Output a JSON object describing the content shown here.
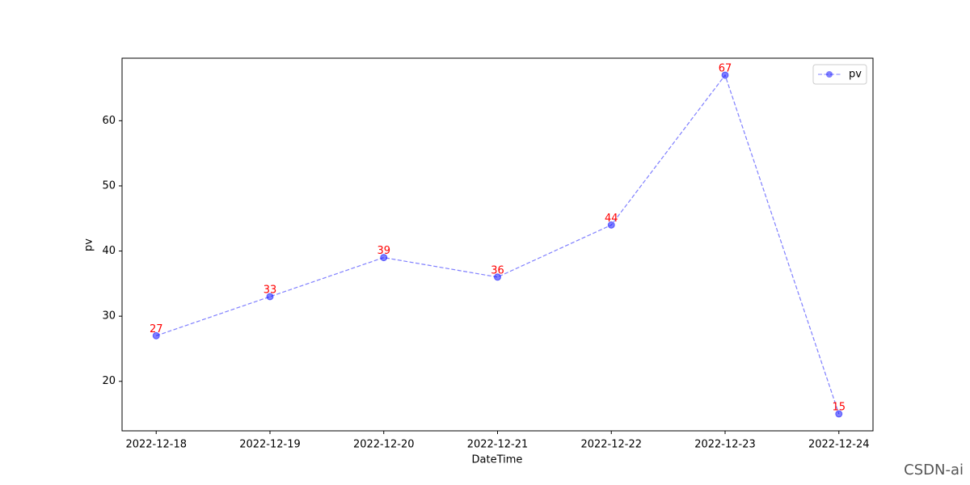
{
  "chart_data": {
    "type": "line",
    "xlabel": "DateTime",
    "ylabel": "pv",
    "categories": [
      "2022-12-18",
      "2022-12-19",
      "2022-12-20",
      "2022-12-21",
      "2022-12-22",
      "2022-12-23",
      "2022-12-24"
    ],
    "series": [
      {
        "name": "pv",
        "color": "#0000ff",
        "label_color": "#ff0000",
        "values": [
          27,
          33,
          39,
          36,
          44,
          67,
          15
        ]
      }
    ],
    "ylim": [
      12.4,
      69.6
    ],
    "yticks": [
      20,
      30,
      40,
      50,
      60
    ],
    "legend": "upper right",
    "grid": false
  },
  "watermark": "CSDN-ai"
}
